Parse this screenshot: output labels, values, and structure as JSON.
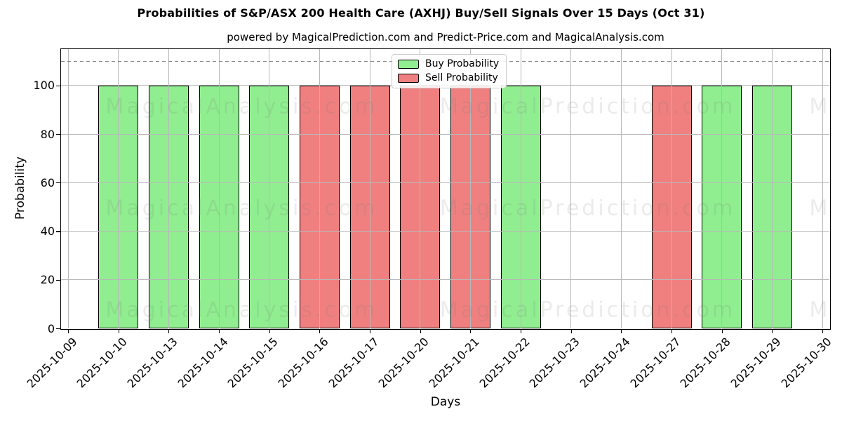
{
  "chart_data": {
    "type": "bar",
    "title": "Probabilities of S&P/ASX 200 Health Care (AXHJ) Buy/Sell Signals Over 15 Days (Oct 31)",
    "subtitle": "powered by MagicalPrediction.com and Predict-Price.com and MagicalAnalysis.com",
    "xlabel": "Days",
    "ylabel": "Probability",
    "categories": [
      "2025-10-09",
      "2025-10-10",
      "2025-10-13",
      "2025-10-14",
      "2025-10-15",
      "2025-10-16",
      "2025-10-17",
      "2025-10-20",
      "2025-10-21",
      "2025-10-22",
      "2025-10-23",
      "2025-10-24",
      "2025-10-27",
      "2025-10-28",
      "2025-10-29",
      "2025-10-30"
    ],
    "series": [
      {
        "name": "Buy Probability",
        "color": "#90ee90",
        "values": [
          null,
          100,
          100,
          100,
          100,
          null,
          null,
          null,
          null,
          100,
          null,
          null,
          null,
          100,
          100,
          null
        ]
      },
      {
        "name": "Sell Probability",
        "color": "#f08080",
        "values": [
          null,
          null,
          null,
          null,
          null,
          100,
          100,
          100,
          100,
          null,
          null,
          null,
          100,
          null,
          null,
          null
        ]
      }
    ],
    "yticks": [
      0,
      20,
      40,
      60,
      80,
      100
    ],
    "ylim": [
      0,
      115
    ],
    "threshold_line": {
      "y": 110,
      "style": "dashed",
      "color": "#888888"
    },
    "grid": true,
    "legend_position": "top-center",
    "bar_edge_color": "#000000",
    "colors": {
      "buy": "#90ee90",
      "sell": "#f08080",
      "grid": "#b8b8b8",
      "watermark": "rgba(110,110,110,0.14)"
    },
    "watermarks": [
      "MagicalAnalysis.com",
      "MagicalPrediction.com"
    ]
  }
}
